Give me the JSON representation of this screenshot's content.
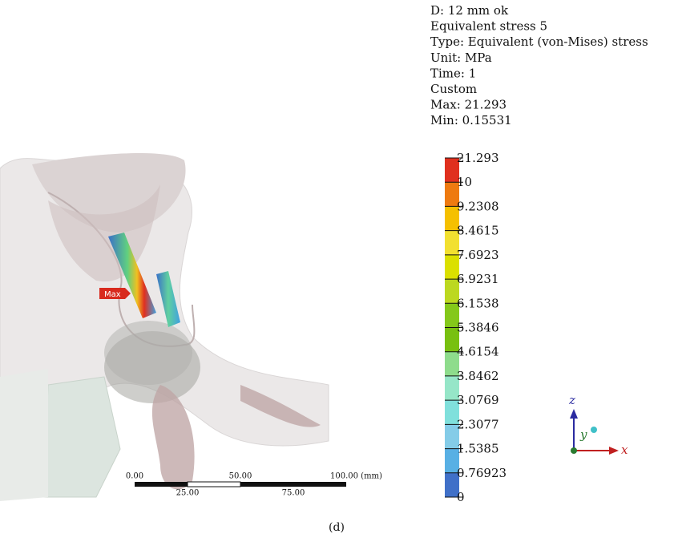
{
  "info": [
    "D: 12 mm ok",
    "Equivalent stress 5",
    "Type: Equivalent (von-Mises) stress",
    "Unit: MPa",
    "Time: 1",
    "Custom",
    "Max: 21.293",
    "Min: 0.15531"
  ],
  "legend": {
    "labels": [
      "21.293",
      "10",
      "9.2308",
      "8.4615",
      "7.6923",
      "6.9231",
      "6.1538",
      "5.3846",
      "4.6154",
      "3.8462",
      "3.0769",
      "2.3077",
      "1.5385",
      "0.76923",
      "0"
    ],
    "colors": [
      "#e0301e",
      "#ee7a10",
      "#f5c000",
      "#f2e030",
      "#dbe000",
      "#bcd820",
      "#84c81a",
      "#78c010",
      "#8edc8c",
      "#96e6c8",
      "#80e0dc",
      "#84cce8",
      "#58b0e4",
      "#4070c8",
      "#3a40b0"
    ]
  },
  "probe": "Max",
  "scale_bar": {
    "top_labels": [
      "0.00",
      "50.00",
      "100.00 (mm)"
    ],
    "bottom_labels": [
      "25.00",
      "75.00"
    ]
  },
  "triad": {
    "z": "z",
    "y": "y",
    "x": "x"
  },
  "caption": "(d)"
}
